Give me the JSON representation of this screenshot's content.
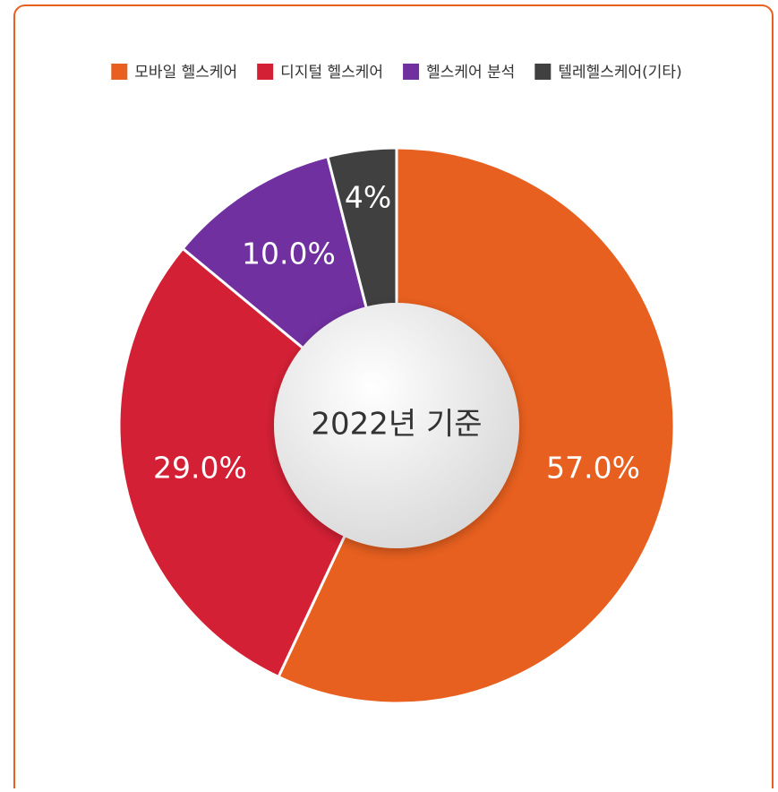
{
  "chart_data": {
    "type": "pie",
    "categories": [
      "모바일 헬스케어",
      "디지털 헬스케어",
      "헬스케어 분석",
      "텔레헬스케어(기타)"
    ],
    "values": [
      57,
      29,
      10,
      4
    ],
    "value_labels": [
      "57.0%",
      "29.0%",
      "10.0%",
      "4%"
    ],
    "colors": [
      "#e8601f",
      "#d42035",
      "#7030a0",
      "#404040"
    ],
    "center_text": "2022년 기준",
    "legend": "top"
  }
}
